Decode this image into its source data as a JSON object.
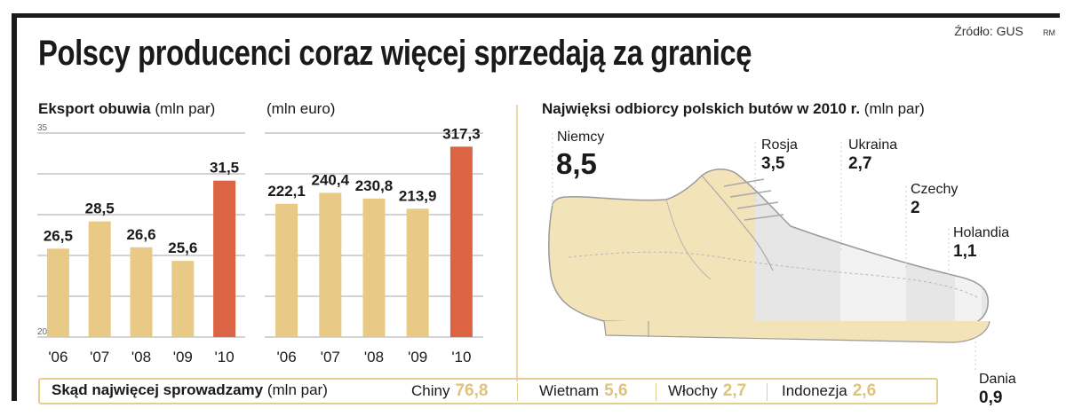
{
  "header": {
    "title": "Polscy producenci coraz więcej sprzedają za granicę",
    "source": "Źródło: GUS",
    "signature": "RM"
  },
  "colors": {
    "bar": "#e8ca86",
    "bar_highlight": "#dc6343",
    "shoe": "#f3e3b8",
    "shoe_right": "#e3e3e3",
    "accent_border": "#e3cf92"
  },
  "chart_data": [
    {
      "type": "bar",
      "title_bold": "Eksport obuwia",
      "unit": "(mln par)",
      "categories": [
        "'06",
        "'07",
        "'08",
        "'09",
        "'10"
      ],
      "values": [
        26.5,
        28.5,
        26.6,
        25.6,
        31.5
      ],
      "value_labels": [
        "26,5",
        "28,5",
        "26,6",
        "25,6",
        "31,5"
      ],
      "highlight_index": 4,
      "ylim": [
        20,
        35
      ],
      "ytick_labels": [
        "35",
        "20"
      ],
      "grid": true
    },
    {
      "type": "bar",
      "unit": "(mln euro)",
      "categories": [
        "'06",
        "'07",
        "'08",
        "'09",
        "'10"
      ],
      "values": [
        222.1,
        240.4,
        230.8,
        213.9,
        317.3
      ],
      "value_labels": [
        "222,1",
        "240,4",
        "230,8",
        "213,9",
        "317,3"
      ],
      "highlight_index": 4,
      "ylim": [
        0,
        340
      ],
      "grid": true
    }
  ],
  "receivers": {
    "title_bold": "Najwięksi odbiorcy polskich butów w 2010 r.",
    "unit": "(mln par)",
    "items": [
      {
        "name": "Niemcy",
        "value": "8,5"
      },
      {
        "name": "Rosja",
        "value": "3,5"
      },
      {
        "name": "Ukraina",
        "value": "2,7"
      },
      {
        "name": "Czechy",
        "value": "2"
      },
      {
        "name": "Holandia",
        "value": "1,1"
      },
      {
        "name": "Dania",
        "value": "0,9"
      }
    ]
  },
  "imports": {
    "title_bold": "Skąd najwięcej sprowadzamy",
    "unit": "(mln par)",
    "items": [
      {
        "name": "Chiny",
        "value": "76,8"
      },
      {
        "name": "Wietnam",
        "value": "5,6"
      },
      {
        "name": "Włochy",
        "value": "2,7"
      },
      {
        "name": "Indonezja",
        "value": "2,6"
      }
    ]
  }
}
